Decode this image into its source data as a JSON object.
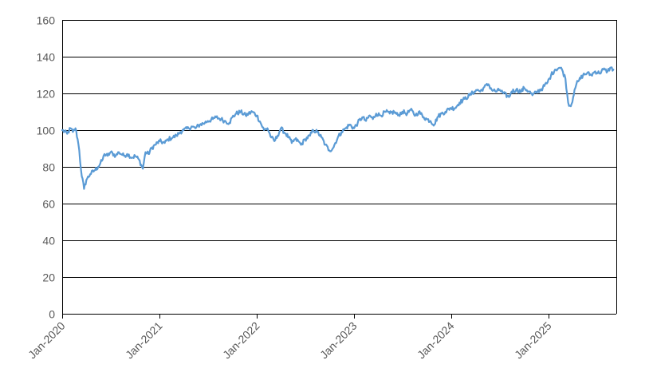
{
  "chart_data": {
    "type": "line",
    "title": "",
    "xlabel": "",
    "ylabel": "",
    "ylim": [
      0,
      160
    ],
    "y_ticks": [
      0,
      20,
      40,
      60,
      80,
      100,
      120,
      140,
      160
    ],
    "x_ticks": [
      "Jan-2020",
      "Jan-2021",
      "Jan-2022",
      "Jan-2023",
      "Jan-2024",
      "Jan-2025"
    ],
    "grid": "horizontal",
    "legend": "none",
    "colors": {
      "series": "#5b9bd5",
      "grid": "#000000",
      "text": "#595959"
    },
    "series": [
      {
        "x": [
          "2020-01-01",
          "2020-01-20",
          "2020-02-01",
          "2020-02-10",
          "2020-02-20",
          "2020-02-28",
          "2020-03-05",
          "2020-03-12",
          "2020-03-23",
          "2020-04-01",
          "2020-04-15",
          "2020-05-01",
          "2020-05-15",
          "2020-06-01",
          "2020-06-08",
          "2020-06-20",
          "2020-07-01",
          "2020-07-20",
          "2020-08-01",
          "2020-08-20",
          "2020-09-01",
          "2020-09-20",
          "2020-10-01",
          "2020-10-15",
          "2020-10-30",
          "2020-11-09",
          "2020-11-20",
          "2020-12-01",
          "2020-12-15",
          "2021-01-01",
          "2021-01-20",
          "2021-02-01",
          "2021-02-20",
          "2021-03-05",
          "2021-03-20",
          "2021-04-01",
          "2021-04-20",
          "2021-05-01",
          "2021-05-15",
          "2021-06-01",
          "2021-06-20",
          "2021-07-01",
          "2021-07-20",
          "2021-08-01",
          "2021-08-20",
          "2021-09-01",
          "2021-09-20",
          "2021-10-01",
          "2021-10-15",
          "2021-11-01",
          "2021-11-20",
          "2021-12-01",
          "2021-12-15",
          "2022-01-01",
          "2022-01-15",
          "2022-01-28",
          "2022-02-10",
          "2022-02-24",
          "2022-03-08",
          "2022-03-20",
          "2022-04-01",
          "2022-04-20",
          "2022-05-01",
          "2022-05-12",
          "2022-05-25",
          "2022-06-06",
          "2022-06-16",
          "2022-07-01",
          "2022-07-20",
          "2022-08-01",
          "2022-08-16",
          "2022-09-01",
          "2022-09-15",
          "2022-09-30",
          "2022-10-13",
          "2022-11-01",
          "2022-11-15",
          "2022-12-01",
          "2022-12-15",
          "2023-01-01",
          "2023-01-15",
          "2023-02-01",
          "2023-02-15",
          "2023-03-01",
          "2023-03-13",
          "2023-03-25",
          "2023-04-10",
          "2023-05-01",
          "2023-05-15",
          "2023-06-01",
          "2023-06-15",
          "2023-07-01",
          "2023-07-20",
          "2023-08-01",
          "2023-08-20",
          "2023-09-01",
          "2023-09-20",
          "2023-10-01",
          "2023-10-15",
          "2023-10-30",
          "2023-11-10",
          "2023-11-25",
          "2023-12-10",
          "2023-12-28",
          "2024-01-15",
          "2024-02-01",
          "2024-02-20",
          "2024-03-10",
          "2024-03-28",
          "2024-04-10",
          "2024-04-19",
          "2024-05-01",
          "2024-05-20",
          "2024-06-01",
          "2024-06-20",
          "2024-07-01",
          "2024-07-15",
          "2024-08-05",
          "2024-08-15",
          "2024-09-01",
          "2024-09-20",
          "2024-10-01",
          "2024-10-20",
          "2024-11-01",
          "2024-11-20",
          "2024-12-10",
          "2024-12-28",
          "2025-01-10",
          "2025-01-25",
          "2025-02-10",
          "2025-02-20",
          "2025-03-05",
          "2025-03-15",
          "2025-03-25",
          "2025-04-03",
          "2025-04-08",
          "2025-04-15",
          "2025-04-25",
          "2025-05-10",
          "2025-05-25",
          "2025-06-10",
          "2025-06-25",
          "2025-07-10",
          "2025-07-25",
          "2025-08-10",
          "2025-08-20",
          "2025-09-01"
        ],
        "values": [
          100,
          98,
          101,
          99,
          101,
          95,
          89,
          78,
          68,
          73,
          76,
          78,
          80,
          84,
          87,
          86,
          88,
          86,
          88,
          86,
          87,
          85,
          86,
          84,
          79,
          88,
          87,
          90,
          92,
          94,
          93,
          95,
          96,
          97,
          99,
          100,
          101,
          102,
          101,
          103,
          104,
          105,
          106,
          107,
          106,
          105,
          104,
          107,
          109,
          110,
          108,
          109,
          110,
          108,
          104,
          100,
          101,
          96,
          94,
          97,
          101,
          98,
          96,
          93,
          95,
          94,
          92,
          95,
          97,
          100,
          99,
          96,
          92,
          89,
          90,
          96,
          99,
          101,
          103,
          101,
          104,
          107,
          105,
          108,
          106,
          109,
          108,
          110,
          109,
          110,
          108,
          110,
          109,
          111,
          108,
          110,
          107,
          106,
          105,
          103,
          107,
          109,
          110,
          112,
          112,
          115,
          117,
          119,
          121,
          122,
          121,
          123,
          125,
          122,
          121,
          122,
          120,
          118,
          121,
          122,
          121,
          123,
          121,
          119,
          121,
          123,
          126,
          130,
          133,
          134,
          133,
          128,
          115,
          113,
          118,
          122,
          125,
          127,
          130,
          131,
          130,
          132,
          131,
          133,
          132,
          134,
          133
        ]
      }
    ]
  }
}
